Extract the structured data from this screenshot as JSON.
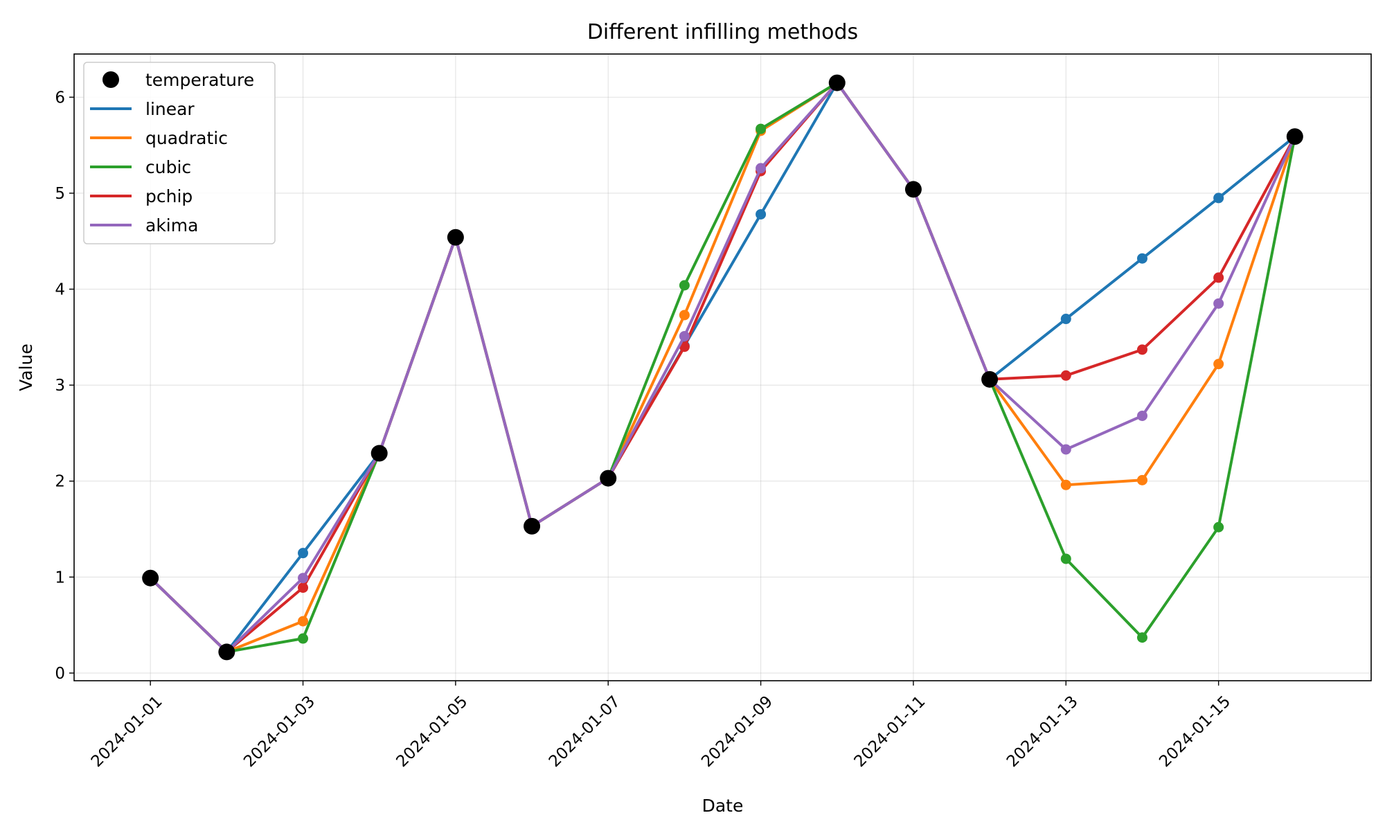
{
  "chart_data": {
    "type": "line",
    "title": "Different infilling methods",
    "xlabel": "Date",
    "ylabel": "Value",
    "x": [
      "2024-01-01",
      "2024-01-02",
      "2024-01-03",
      "2024-01-04",
      "2024-01-05",
      "2024-01-06",
      "2024-01-07",
      "2024-01-08",
      "2024-01-09",
      "2024-01-10",
      "2024-01-11",
      "2024-01-12",
      "2024-01-13",
      "2024-01-14",
      "2024-01-15",
      "2024-01-16"
    ],
    "x_ticks": [
      "2024-01-01",
      "2024-01-03",
      "2024-01-05",
      "2024-01-07",
      "2024-01-09",
      "2024-01-11",
      "2024-01-13",
      "2024-01-15"
    ],
    "xlim": [
      "2023-12-31",
      "2024-01-17"
    ],
    "ylim": [
      -0.08,
      6.45
    ],
    "y_ticks": [
      0,
      1,
      2,
      3,
      4,
      5,
      6
    ],
    "grid": true,
    "legend_position": "upper-left",
    "observed": {
      "name": "temperature",
      "color": "#000000",
      "values": [
        0.99,
        0.22,
        null,
        2.29,
        4.54,
        1.53,
        2.03,
        null,
        null,
        6.15,
        5.04,
        3.06,
        null,
        null,
        null,
        5.59
      ]
    },
    "series": [
      {
        "name": "linear",
        "color": "#1f77b4",
        "values": [
          0.99,
          0.22,
          1.25,
          2.29,
          4.54,
          1.53,
          2.03,
          3.41,
          4.78,
          6.15,
          5.04,
          3.06,
          3.69,
          4.32,
          4.95,
          5.59
        ]
      },
      {
        "name": "quadratic",
        "color": "#ff7f0e",
        "values": [
          0.99,
          0.22,
          0.54,
          2.29,
          4.54,
          1.53,
          2.03,
          3.73,
          5.65,
          6.15,
          5.04,
          3.06,
          1.96,
          2.01,
          3.22,
          5.59
        ]
      },
      {
        "name": "cubic",
        "color": "#2ca02c",
        "values": [
          0.99,
          0.22,
          0.36,
          2.29,
          4.54,
          1.53,
          2.03,
          4.04,
          5.67,
          6.15,
          5.04,
          3.06,
          1.19,
          0.37,
          1.52,
          5.59
        ]
      },
      {
        "name": "pchip",
        "color": "#d62728",
        "values": [
          0.99,
          0.22,
          0.89,
          2.29,
          4.54,
          1.53,
          2.03,
          3.4,
          5.23,
          6.15,
          5.04,
          3.06,
          3.1,
          3.37,
          4.12,
          5.59
        ]
      },
      {
        "name": "akima",
        "color": "#9467bd",
        "values": [
          0.99,
          0.22,
          0.99,
          2.29,
          4.54,
          1.53,
          2.03,
          3.51,
          5.26,
          6.15,
          5.04,
          3.06,
          2.33,
          2.68,
          3.85,
          5.59
        ]
      }
    ]
  }
}
